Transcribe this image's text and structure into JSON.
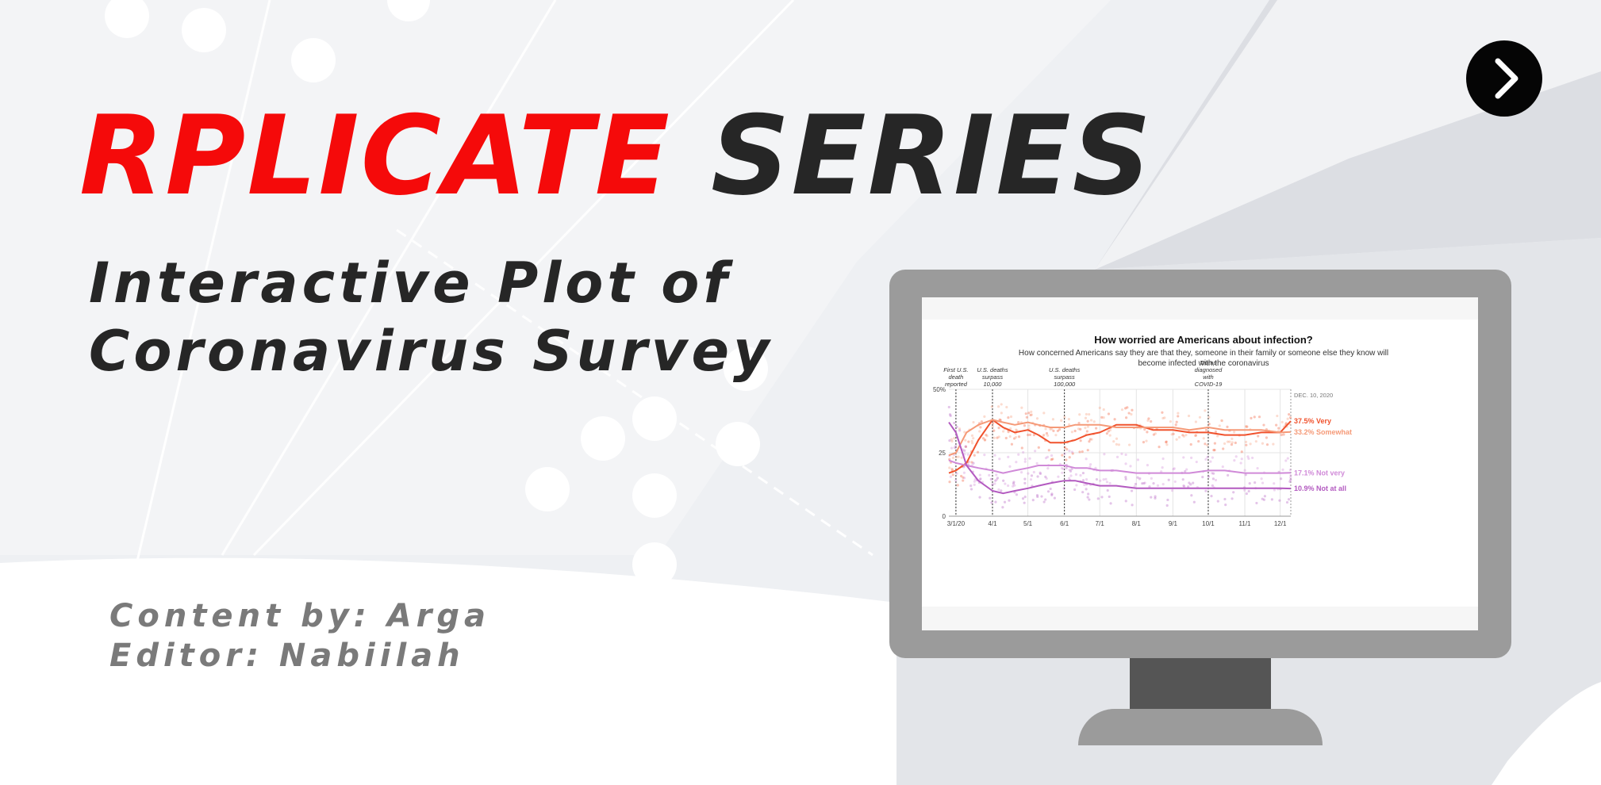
{
  "banner": {
    "title_part1": "RPLICATE",
    "title_part2": "SERIES",
    "subtitle_line1": "Interactive Plot of",
    "subtitle_line2": "Coronavirus Survey",
    "content_by": "Content by: Arga",
    "editor": "Editor: Nabiilah",
    "next_icon": "chevron-right-icon"
  },
  "colors": {
    "title_red": "#f50a0a",
    "title_dark": "#262626",
    "credits_gray": "#7a7a7a",
    "monitor_frame": "#9b9b9b",
    "monitor_neck": "#555555",
    "series_very": "#f0522d",
    "series_somewhat": "#f59a78",
    "series_not_very": "#d08ad8",
    "series_not_at_all": "#b35ac0"
  },
  "chart_data": {
    "type": "line",
    "title": "How worried are Americans about infection?",
    "subtitle_line1": "How concerned Americans say they are that they, someone in their family or someone else they know will",
    "subtitle_line2": "become infected with the coronavirus",
    "date_label": "DEC. 10, 2020",
    "y_ticks": [
      "50%",
      "25",
      "0"
    ],
    "ylim": [
      0,
      50
    ],
    "x_ticks": [
      "3/1/20",
      "4/1",
      "5/1",
      "6/1",
      "7/1",
      "8/1",
      "9/1",
      "10/1",
      "11/1",
      "12/1"
    ],
    "grid": true,
    "legend_placement": "direct labels at right end of lines",
    "annotations": [
      {
        "x": "3/1/20",
        "lines": [
          "First U.S.",
          "death",
          "reported"
        ]
      },
      {
        "x": "4/1",
        "lines": [
          "U.S. deaths",
          "surpass",
          "10,000"
        ]
      },
      {
        "x": "6/1",
        "lines": [
          "U.S. deaths",
          "surpass",
          "100,000"
        ]
      },
      {
        "x": "10/1",
        "lines": [
          "Trump",
          "diagnosed",
          "with",
          "COVID-19"
        ]
      }
    ],
    "x": [
      "2/24",
      "3/1",
      "3/10",
      "3/20",
      "4/1",
      "4/10",
      "4/20",
      "5/1",
      "5/10",
      "5/20",
      "6/1",
      "6/10",
      "6/20",
      "7/1",
      "7/15",
      "8/1",
      "8/15",
      "9/1",
      "9/15",
      "10/1",
      "10/15",
      "11/1",
      "11/15",
      "12/1",
      "12/10"
    ],
    "series": [
      {
        "name": "Very",
        "end_label": "37.5% Very",
        "color_key": "series_very",
        "values": [
          17,
          18,
          21,
          30,
          38,
          35,
          33,
          34,
          32,
          29,
          29,
          30,
          32,
          33,
          36,
          36,
          34,
          34,
          33,
          33,
          32,
          32,
          33,
          33,
          37.5
        ]
      },
      {
        "name": "Somewhat",
        "end_label": "33.2% Somewhat",
        "color_key": "series_somewhat",
        "values": [
          24,
          25,
          33,
          36,
          38,
          37,
          36,
          37,
          36,
          35,
          35,
          36,
          36,
          36,
          35,
          35,
          35,
          35,
          34,
          35,
          34,
          34,
          34,
          33,
          33.2
        ]
      },
      {
        "name": "Not very",
        "end_label": "17.1% Not very",
        "color_key": "series_not_very",
        "values": [
          22,
          21,
          20,
          19,
          18,
          17,
          18,
          19,
          20,
          20,
          20,
          19,
          19,
          18,
          18,
          17,
          17,
          17,
          17,
          18,
          18,
          17,
          17,
          17,
          17.1
        ]
      },
      {
        "name": "Not at all",
        "end_label": "10.9% Not at all",
        "color_key": "series_not_at_all",
        "values": [
          37,
          33,
          20,
          14,
          10,
          9,
          10,
          11,
          12,
          13,
          14,
          14,
          13,
          12,
          12,
          11,
          11,
          11,
          11,
          11,
          11,
          11,
          11,
          11,
          10.9
        ]
      }
    ]
  }
}
